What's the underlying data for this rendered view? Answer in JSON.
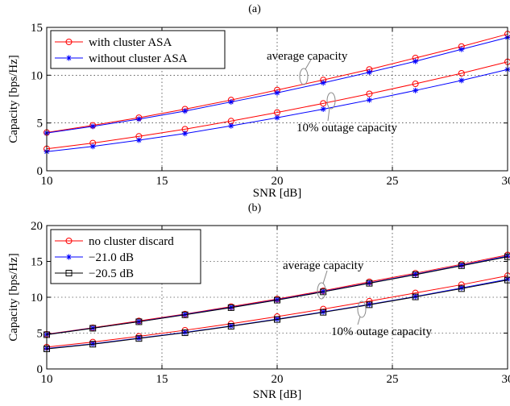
{
  "chart_data": [
    {
      "type": "line",
      "title": "(a)",
      "xlabel": "SNR [dB]",
      "ylabel": "Capacity [bps/Hz]",
      "xlim": [
        10,
        30
      ],
      "ylim": [
        0,
        15
      ],
      "xticks": [
        10,
        15,
        20,
        25,
        30
      ],
      "yticks": [
        0,
        5,
        10,
        15
      ],
      "grid": true,
      "legend_position": "top-left",
      "x": [
        10,
        12,
        14,
        16,
        18,
        20,
        22,
        24,
        26,
        28,
        30
      ],
      "series": [
        {
          "name": "with cluster ASA",
          "group": "average",
          "color": "#ff0000",
          "marker": "circle",
          "legend": true,
          "values": [
            4.0,
            4.75,
            5.55,
            6.45,
            7.4,
            8.45,
            9.5,
            10.6,
            11.8,
            13.0,
            14.3
          ]
        },
        {
          "name": "without cluster ASA",
          "group": "average",
          "color": "#0000ff",
          "marker": "star",
          "legend": true,
          "values": [
            3.95,
            4.65,
            5.4,
            6.25,
            7.2,
            8.15,
            9.2,
            10.3,
            11.45,
            12.7,
            13.95
          ]
        },
        {
          "name": "with cluster ASA",
          "group": "outage",
          "color": "#ff0000",
          "marker": "circle",
          "legend": false,
          "values": [
            2.3,
            2.9,
            3.6,
            4.35,
            5.2,
            6.1,
            7.05,
            8.05,
            9.1,
            10.2,
            11.4
          ]
        },
        {
          "name": "without cluster ASA",
          "group": "outage",
          "color": "#0000ff",
          "marker": "star",
          "legend": false,
          "values": [
            2.0,
            2.55,
            3.2,
            3.9,
            4.7,
            5.55,
            6.45,
            7.4,
            8.4,
            9.45,
            10.6
          ]
        }
      ],
      "annotations": [
        {
          "text": "average capacity"
        },
        {
          "text": "10% outage capacity"
        }
      ]
    },
    {
      "type": "line",
      "title": "(b)",
      "xlabel": "SNR [dB]",
      "ylabel": "Capacity [bps/Hz]",
      "xlim": [
        10,
        30
      ],
      "ylim": [
        0,
        20
      ],
      "xticks": [
        10,
        15,
        20,
        25,
        30
      ],
      "yticks": [
        0,
        5,
        10,
        15,
        20
      ],
      "grid": true,
      "legend_position": "top-left",
      "x": [
        10,
        12,
        14,
        16,
        18,
        20,
        22,
        24,
        26,
        28,
        30
      ],
      "series": [
        {
          "name": "no cluster discard",
          "group": "average",
          "color": "#ff0000",
          "marker": "circle",
          "legend": true,
          "values": [
            4.85,
            5.75,
            6.7,
            7.65,
            8.7,
            9.75,
            10.9,
            12.15,
            13.35,
            14.6,
            15.9
          ]
        },
        {
          "name": "−21.0 dB",
          "group": "average",
          "color": "#0000ff",
          "marker": "star",
          "legend": true,
          "values": [
            4.8,
            5.7,
            6.6,
            7.6,
            8.6,
            9.65,
            10.8,
            12.0,
            13.2,
            14.45,
            15.75
          ]
        },
        {
          "name": "−20.5 dB",
          "group": "average",
          "color": "#000000",
          "marker": "square",
          "legend": true,
          "values": [
            4.78,
            5.68,
            6.58,
            7.55,
            8.55,
            9.6,
            10.75,
            11.95,
            13.15,
            14.4,
            15.65
          ]
        },
        {
          "name": "no cluster discard",
          "group": "outage",
          "color": "#ff0000",
          "marker": "circle",
          "legend": false,
          "values": [
            3.05,
            3.75,
            4.55,
            5.4,
            6.3,
            7.3,
            8.35,
            9.45,
            10.6,
            11.75,
            13.0
          ]
        },
        {
          "name": "−21.0 dB",
          "group": "outage",
          "color": "#0000ff",
          "marker": "star",
          "legend": false,
          "values": [
            2.85,
            3.5,
            4.3,
            5.1,
            6.0,
            6.95,
            7.95,
            9.0,
            10.1,
            11.3,
            12.5
          ]
        },
        {
          "name": "−20.5 dB",
          "group": "outage",
          "color": "#000000",
          "marker": "square",
          "legend": false,
          "values": [
            2.8,
            3.45,
            4.25,
            5.05,
            5.95,
            6.9,
            7.9,
            8.95,
            10.05,
            11.2,
            12.4
          ]
        }
      ],
      "annotations": [
        {
          "text": "average capacity"
        },
        {
          "text": "10% outage capacity"
        }
      ]
    }
  ]
}
